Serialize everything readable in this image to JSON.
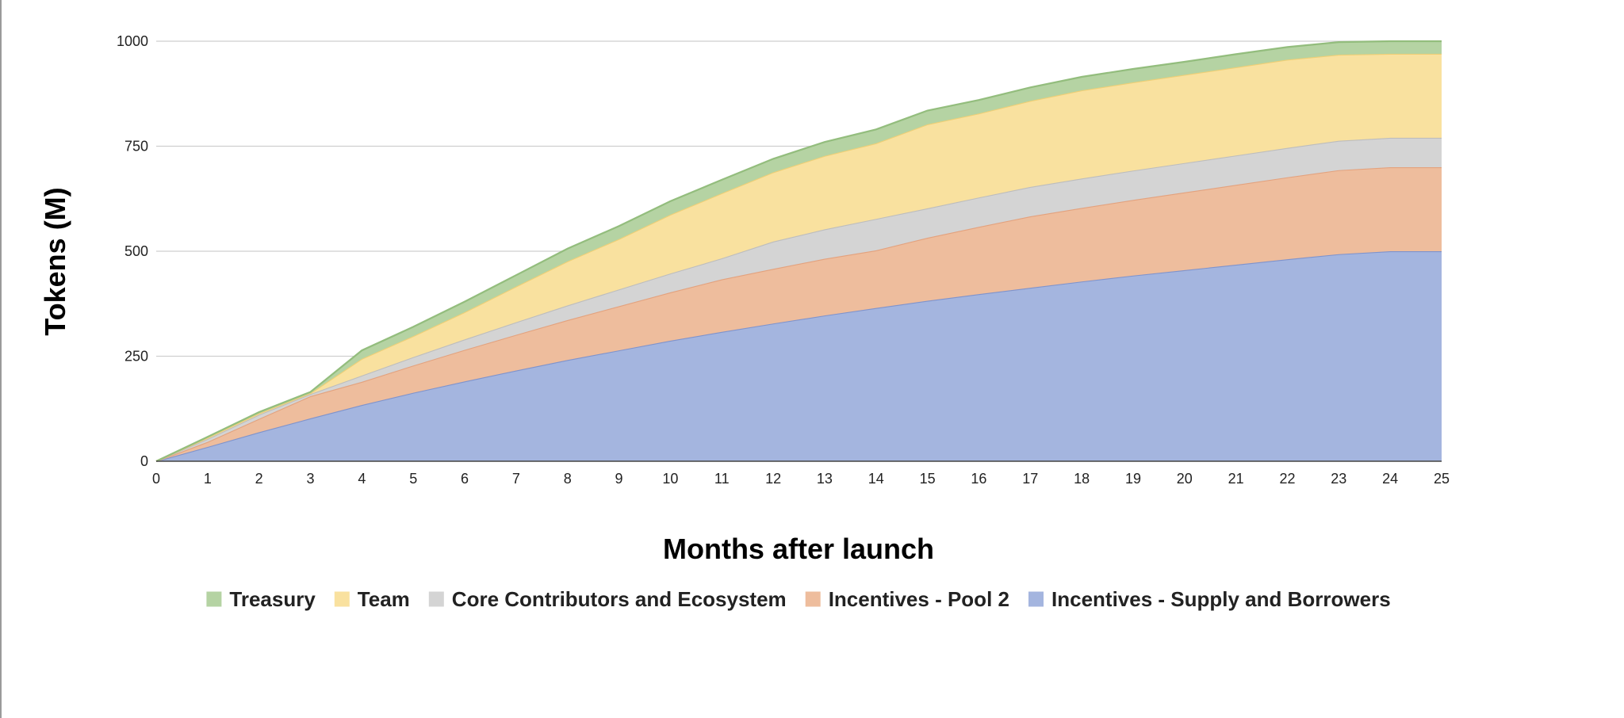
{
  "chart_data": {
    "type": "area",
    "stacked": true,
    "title": "",
    "xlabel": "Months after launch",
    "ylabel": "Tokens (M)",
    "x": [
      0,
      1,
      2,
      3,
      4,
      5,
      6,
      7,
      8,
      9,
      10,
      11,
      12,
      13,
      14,
      15,
      16,
      17,
      18,
      19,
      20,
      21,
      22,
      23,
      24,
      25
    ],
    "xlim": [
      0,
      25
    ],
    "ylim": [
      0,
      1000
    ],
    "yticks": [
      0,
      250,
      500,
      750,
      1000
    ],
    "grid": true,
    "legend_position": "bottom",
    "series": [
      {
        "name": "Incentives - Supply and Borrowers",
        "color": "#a4b5df",
        "line_color": "#7f93cc",
        "values": [
          0,
          34,
          69,
          102,
          134,
          163,
          190,
          216,
          241,
          264,
          287,
          308,
          328,
          347,
          365,
          382,
          398,
          413,
          428,
          442,
          455,
          468,
          481,
          493,
          500,
          500
        ]
      },
      {
        "name": "Incentives - Pool 2",
        "color": "#eebd9d",
        "line_color": "#e3a27e",
        "values": [
          0,
          12,
          32,
          53,
          55,
          65,
          75,
          85,
          95,
          105,
          115,
          125,
          130,
          135,
          137,
          150,
          160,
          170,
          175,
          180,
          185,
          190,
          195,
          200,
          200,
          200
        ]
      },
      {
        "name": "Core Contributors and Ecosystem",
        "color": "#d4d4d4",
        "line_color": "#bdbdbd",
        "values": [
          0,
          7,
          10,
          5,
          15,
          20,
          25,
          30,
          35,
          40,
          45,
          50,
          65,
          70,
          75,
          70,
          70,
          70,
          70,
          70,
          70,
          70,
          70,
          70,
          70,
          70
        ]
      },
      {
        "name": "Team",
        "color": "#f9e19f",
        "line_color": "#efcf76",
        "values": [
          0,
          3,
          3,
          2,
          40,
          50,
          65,
          85,
          105,
          120,
          140,
          155,
          165,
          175,
          180,
          200,
          200,
          205,
          210,
          210,
          210,
          210,
          210,
          205,
          200,
          200
        ]
      },
      {
        "name": "Treasury",
        "color": "#b5d3a3",
        "line_color": "#93bd7d",
        "values": [
          0,
          2,
          3,
          3,
          20,
          22,
          25,
          27,
          30,
          31,
          32,
          32,
          32,
          33,
          33,
          33,
          32,
          32,
          32,
          32,
          31,
          31,
          30,
          30,
          30,
          30
        ]
      }
    ],
    "legend_order": [
      "Treasury",
      "Team",
      "Core Contributors and Ecosystem",
      "Incentives - Pool 2",
      "Incentives - Supply and Borrowers"
    ]
  }
}
